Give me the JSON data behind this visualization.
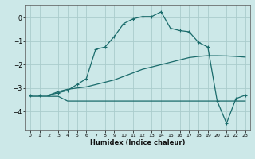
{
  "xlabel": "Humidex (Indice chaleur)",
  "background_color": "#cce8e8",
  "grid_color": "#aacccc",
  "line_color": "#1a6b6b",
  "x_values": [
    0,
    1,
    2,
    3,
    4,
    5,
    6,
    7,
    8,
    9,
    10,
    11,
    12,
    13,
    14,
    15,
    16,
    17,
    18,
    19,
    20,
    21,
    22,
    23
  ],
  "line_top": [
    -3.3,
    -3.3,
    -3.3,
    -3.2,
    -3.1,
    -2.85,
    -2.6,
    -1.35,
    -1.25,
    -0.8,
    -0.25,
    -0.05,
    0.05,
    0.05,
    0.25,
    -0.45,
    -0.55,
    -0.6,
    -1.05,
    -1.25,
    -3.55,
    -4.5,
    -3.45,
    -3.3
  ],
  "line_mid": [
    -3.3,
    -3.3,
    -3.3,
    -3.15,
    -3.05,
    -3.0,
    -2.95,
    -2.85,
    -2.75,
    -2.65,
    -2.5,
    -2.35,
    -2.2,
    -2.1,
    -2.0,
    -1.9,
    -1.8,
    -1.7,
    -1.65,
    -1.62,
    -1.62,
    -1.63,
    -1.65,
    -1.68
  ],
  "line_bot": [
    -3.35,
    -3.35,
    -3.35,
    -3.35,
    -3.55,
    -3.55,
    -3.55,
    -3.55,
    -3.55,
    -3.55,
    -3.55,
    -3.55,
    -3.55,
    -3.55,
    -3.55,
    -3.55,
    -3.55,
    -3.55,
    -3.55,
    -3.55,
    -3.55,
    -3.55,
    -3.55,
    -3.55
  ],
  "xlim": [
    -0.5,
    23.5
  ],
  "ylim": [
    -4.8,
    0.55
  ],
  "yticks": [
    0,
    -1,
    -2,
    -3,
    -4
  ],
  "xticks": [
    0,
    1,
    2,
    3,
    4,
    5,
    6,
    7,
    8,
    9,
    10,
    11,
    12,
    13,
    14,
    15,
    16,
    17,
    18,
    19,
    20,
    21,
    22,
    23
  ]
}
